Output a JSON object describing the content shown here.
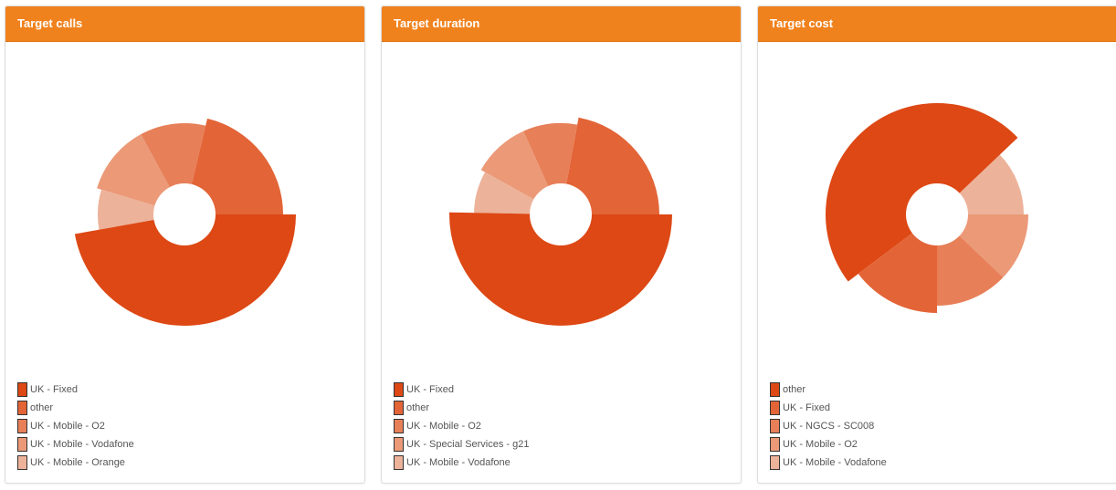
{
  "colors": [
    "#dd4815",
    "#e36437",
    "#e77f58",
    "#eb9977",
    "#edb29a"
  ],
  "chart_data": [
    {
      "type": "pie",
      "title": "Target calls",
      "categories": [
        "UK - Fixed",
        "other",
        "UK - Mobile - O2",
        "UK - Mobile - Vodafone",
        "UK - Mobile - Orange"
      ],
      "values": [
        47,
        21.2,
        11.6,
        12.4,
        7.4
      ],
      "start_category": "other",
      "donut": true
    },
    {
      "type": "pie",
      "title": "Target duration",
      "categories": [
        "UK - Fixed",
        "other",
        "UK - Mobile - O2",
        "UK - Special Services - g21",
        "UK - Mobile - Vodafone"
      ],
      "values": [
        50.3,
        22.1,
        9.6,
        10.2,
        7.8
      ],
      "start_category": "other",
      "donut": true
    },
    {
      "type": "pie",
      "title": "Target cost",
      "categories": [
        "other",
        "UK - Fixed",
        "UK - NGCS - SC008",
        "UK - Mobile - O2",
        "UK - Mobile - Vodafone"
      ],
      "values": [
        48.2,
        14.7,
        12.9,
        12.1,
        12.1
      ],
      "start_category": "UK - Mobile - Vodafone",
      "donut": true
    }
  ]
}
